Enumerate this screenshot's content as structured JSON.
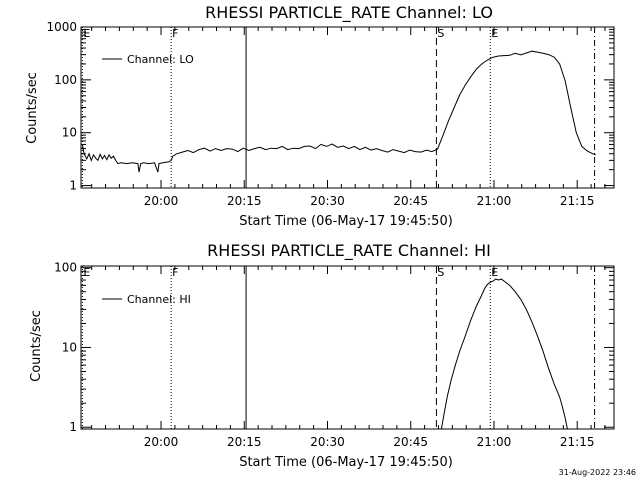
{
  "chart_data": [
    {
      "type": "line",
      "title": "RHESSI PARTICLE_RATE Channel: LO",
      "xlabel": "Start Time (06-May-17 19:45:50)",
      "ylabel": "Counts/sec",
      "yscale": "log",
      "ylim": [
        0.9,
        1000
      ],
      "xlim_minutes": [
        -0.25,
        95.8
      ],
      "xticks": [
        {
          "min": 14.17,
          "label": "20:00"
        },
        {
          "min": 29.17,
          "label": "20:15"
        },
        {
          "min": 44.17,
          "label": "20:30"
        },
        {
          "min": 59.17,
          "label": "20:45"
        },
        {
          "min": 74.17,
          "label": "21:00"
        },
        {
          "min": 89.17,
          "label": "21:15"
        }
      ],
      "yticks": [
        {
          "value": 1,
          "label": "1"
        },
        {
          "value": 10,
          "label": "10"
        },
        {
          "value": 100,
          "label": "100"
        },
        {
          "value": 1000,
          "label": "1000"
        }
      ],
      "legend": {
        "position": "top-left",
        "entries": [
          "Channel: LO"
        ]
      },
      "markers": [
        {
          "min": 0.0,
          "label": "E",
          "style": "dotted"
        },
        {
          "min": 16.0,
          "label": "F",
          "style": "dotted"
        },
        {
          "min": 29.5,
          "label": "",
          "style": "solid"
        },
        {
          "min": 63.8,
          "label": "S",
          "style": "dashed"
        },
        {
          "min": 73.5,
          "label": "E",
          "style": "dotted"
        },
        {
          "min": 92.3,
          "label": "",
          "style": "dashdot"
        }
      ],
      "series": [
        {
          "name": "Channel: LO",
          "x": [
            0,
            0.3,
            0.8,
            1.2,
            1.6,
            2.0,
            2.4,
            2.8,
            3.2,
            3.6,
            4.0,
            4.4,
            4.8,
            5.2,
            5.6,
            6.0,
            6.4,
            7.0,
            8.0,
            9.0,
            10.0,
            10.2,
            10.5,
            11.0,
            12.0,
            13.0,
            13.6,
            13.8,
            14.5,
            15.5,
            16.0,
            16.3,
            17.0,
            18.0,
            19.0,
            20.0,
            21.0,
            22.0,
            23.0,
            24.0,
            25.0,
            26.0,
            27.0,
            28.0,
            29.0,
            30.0,
            31.0,
            32.0,
            33.0,
            34.0,
            35.0,
            36.0,
            37.0,
            38.0,
            39.0,
            40.0,
            41.0,
            42.0,
            43.0,
            44.0,
            45.0,
            46.0,
            47.0,
            48.0,
            49.0,
            50.0,
            51.0,
            52.0,
            53.0,
            54.0,
            55.0,
            56.0,
            57.0,
            58.0,
            59.0,
            60.0,
            61.0,
            62.0,
            63.0,
            64.0,
            65.0,
            66.0,
            67.0,
            68.0,
            69.0,
            70.0,
            71.0,
            72.0,
            73.0,
            74.0,
            75.0,
            76.0,
            77.0,
            78.0,
            79.0,
            80.0,
            81.0,
            82.0,
            83.0,
            84.0,
            85.0,
            86.0,
            87.0,
            88.0,
            89.0,
            90.0,
            91.0,
            92.0,
            92.5
          ],
          "values": [
            6,
            4,
            3.2,
            4,
            3,
            3.8,
            3.3,
            3,
            3.9,
            3.2,
            3.7,
            3.1,
            3.8,
            3.3,
            3.6,
            3,
            2.6,
            2.7,
            2.6,
            2.7,
            2.6,
            1.8,
            2.6,
            2.7,
            2.6,
            2.7,
            1.8,
            2.6,
            2.7,
            2.8,
            3,
            3.6,
            4,
            4.3,
            4.6,
            4.2,
            4.8,
            5.1,
            4.5,
            5.0,
            4.6,
            5.0,
            4.9,
            4.4,
            5.1,
            4.6,
            5.0,
            5.3,
            4.8,
            5.1,
            5.0,
            5.5,
            4.8,
            5.1,
            5.0,
            5.5,
            5.6,
            5.0,
            6.0,
            5.5,
            6.1,
            5.3,
            5.6,
            5.0,
            5.5,
            4.8,
            5.3,
            4.7,
            5.0,
            4.6,
            4.3,
            4.8,
            4.5,
            4.2,
            4.7,
            4.4,
            4.3,
            4.7,
            4.4,
            4.9,
            9,
            17,
            30,
            52,
            80,
            115,
            160,
            200,
            238,
            268,
            283,
            288,
            292,
            318,
            298,
            322,
            348,
            335,
            318,
            300,
            270,
            200,
            95,
            30,
            10,
            5.5,
            4.5,
            4.0,
            3.8
          ]
        }
      ]
    },
    {
      "type": "line",
      "title": "RHESSI PARTICLE_RATE Channel: HI",
      "xlabel": "Start Time (06-May-17 19:45:50)",
      "ylabel": "Counts/sec",
      "yscale": "log",
      "ylim": [
        0.95,
        105
      ],
      "xlim_minutes": [
        -0.25,
        95.8
      ],
      "xticks": [
        {
          "min": 14.17,
          "label": "20:00"
        },
        {
          "min": 29.17,
          "label": "20:15"
        },
        {
          "min": 44.17,
          "label": "20:30"
        },
        {
          "min": 59.17,
          "label": "20:45"
        },
        {
          "min": 74.17,
          "label": "21:00"
        },
        {
          "min": 89.17,
          "label": "21:15"
        }
      ],
      "yticks": [
        {
          "value": 1,
          "label": "1"
        },
        {
          "value": 10,
          "label": "10"
        },
        {
          "value": 100,
          "label": "100"
        }
      ],
      "legend": {
        "position": "top-left",
        "entries": [
          "Channel: HI"
        ]
      },
      "markers": [
        {
          "min": 0.0,
          "label": "E",
          "style": "dotted"
        },
        {
          "min": 16.0,
          "label": "F",
          "style": "dotted"
        },
        {
          "min": 29.5,
          "label": "",
          "style": "solid"
        },
        {
          "min": 63.8,
          "label": "S",
          "style": "dashed"
        },
        {
          "min": 73.5,
          "label": "E",
          "style": "dotted"
        },
        {
          "min": 92.3,
          "label": "",
          "style": "dashdot"
        }
      ],
      "series": [
        {
          "name": "Channel: HI",
          "x": [
            64.7,
            65.2,
            65.8,
            66.5,
            67.2,
            68.0,
            69.0,
            70.0,
            71.0,
            72.0,
            72.5,
            73.0,
            73.5,
            74.0,
            74.5,
            75.0,
            75.5,
            76.0,
            77.0,
            78.0,
            79.0,
            80.0,
            81.0,
            82.0,
            83.0,
            84.0,
            85.0,
            86.0,
            86.5,
            87.0,
            87.4
          ],
          "values": [
            0.95,
            1.5,
            2.5,
            4,
            6,
            9,
            14,
            22,
            33,
            46,
            55,
            62,
            66,
            68,
            72,
            70,
            72,
            68,
            60,
            50,
            40,
            30,
            21,
            14,
            9,
            5.5,
            3.5,
            2.4,
            1.8,
            1.3,
            0.95
          ]
        }
      ]
    }
  ],
  "timestamp": "31-Aug-2022 23:46"
}
